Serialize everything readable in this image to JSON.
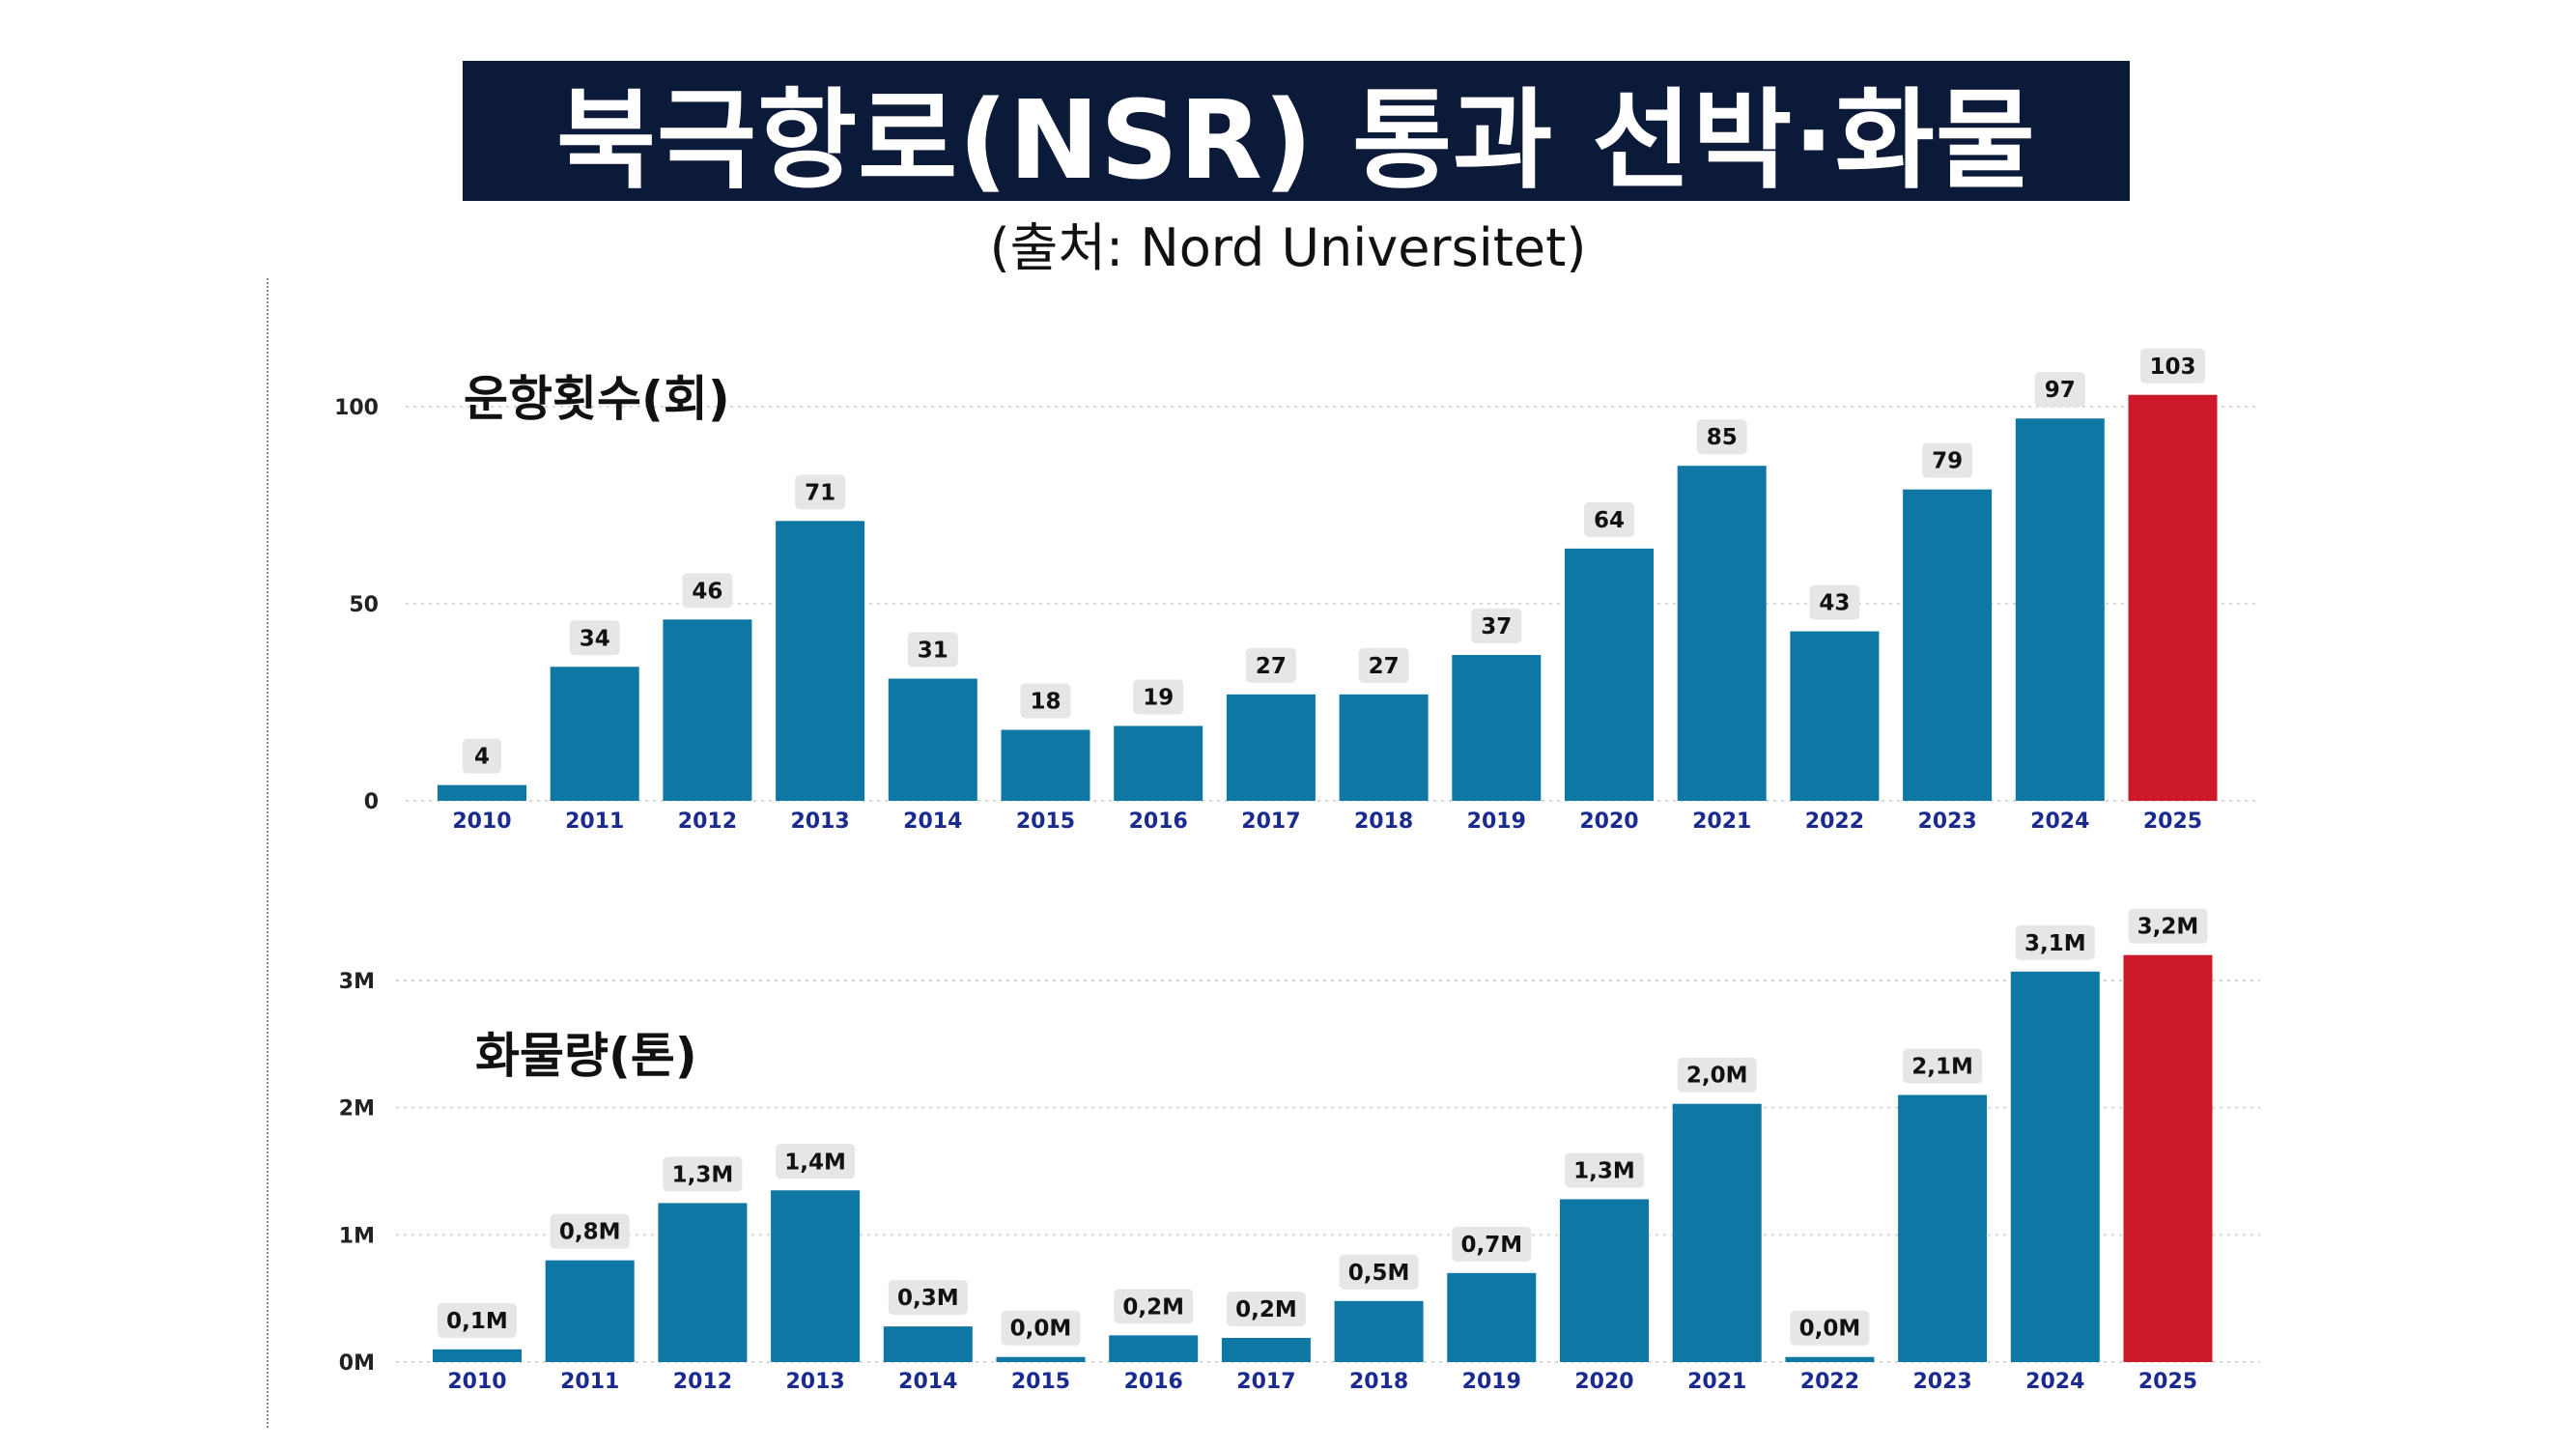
{
  "header": {
    "title": "북극항로(NSR) 통과 선박·화물",
    "source": "(출처: Nord Universitet)"
  },
  "colors": {
    "banner_bg": "#0c1a3a",
    "bar": "#0f77a3",
    "highlight_bar": "#cc1a2a",
    "axis_year": "#1a2a8f",
    "label_bg": "#e6e6e6"
  },
  "chart_data": [
    {
      "type": "bar",
      "title": "운항횟수(회)",
      "categories": [
        "2010",
        "2011",
        "2012",
        "2013",
        "2014",
        "2015",
        "2016",
        "2017",
        "2018",
        "2019",
        "2020",
        "2021",
        "2022",
        "2023",
        "2024",
        "2025"
      ],
      "values": [
        4,
        34,
        46,
        71,
        31,
        18,
        19,
        27,
        27,
        37,
        64,
        85,
        43,
        79,
        97,
        103
      ],
      "data_labels": [
        "4",
        "34",
        "46",
        "71",
        "31",
        "18",
        "19",
        "27",
        "27",
        "37",
        "64",
        "85",
        "43",
        "79",
        "97",
        "103"
      ],
      "yticks": [
        "0",
        "50",
        "100"
      ],
      "ylim": [
        0,
        100
      ],
      "grid": true,
      "highlight_category": "2025"
    },
    {
      "type": "bar",
      "title": "화물량(톤)",
      "categories": [
        "2010",
        "2011",
        "2012",
        "2013",
        "2014",
        "2015",
        "2016",
        "2017",
        "2018",
        "2019",
        "2020",
        "2021",
        "2022",
        "2023",
        "2024",
        "2025"
      ],
      "values": [
        0.1,
        0.8,
        1.25,
        1.35,
        0.28,
        0.04,
        0.21,
        0.19,
        0.48,
        0.7,
        1.28,
        2.03,
        0.04,
        2.1,
        3.07,
        3.2
      ],
      "data_labels": [
        "0,1M",
        "0,8M",
        "1,3M",
        "1,4M",
        "0,3M",
        "0,0M",
        "0,2M",
        "0,2M",
        "0,5M",
        "0,7M",
        "1,3M",
        "2,0M",
        "0,0M",
        "2,1M",
        "3,1M",
        "3,2M"
      ],
      "yticks": [
        "0M",
        "1M",
        "2M",
        "3M"
      ],
      "ylim": [
        0,
        3
      ],
      "unit": "M",
      "grid": true,
      "highlight_category": "2025"
    }
  ]
}
